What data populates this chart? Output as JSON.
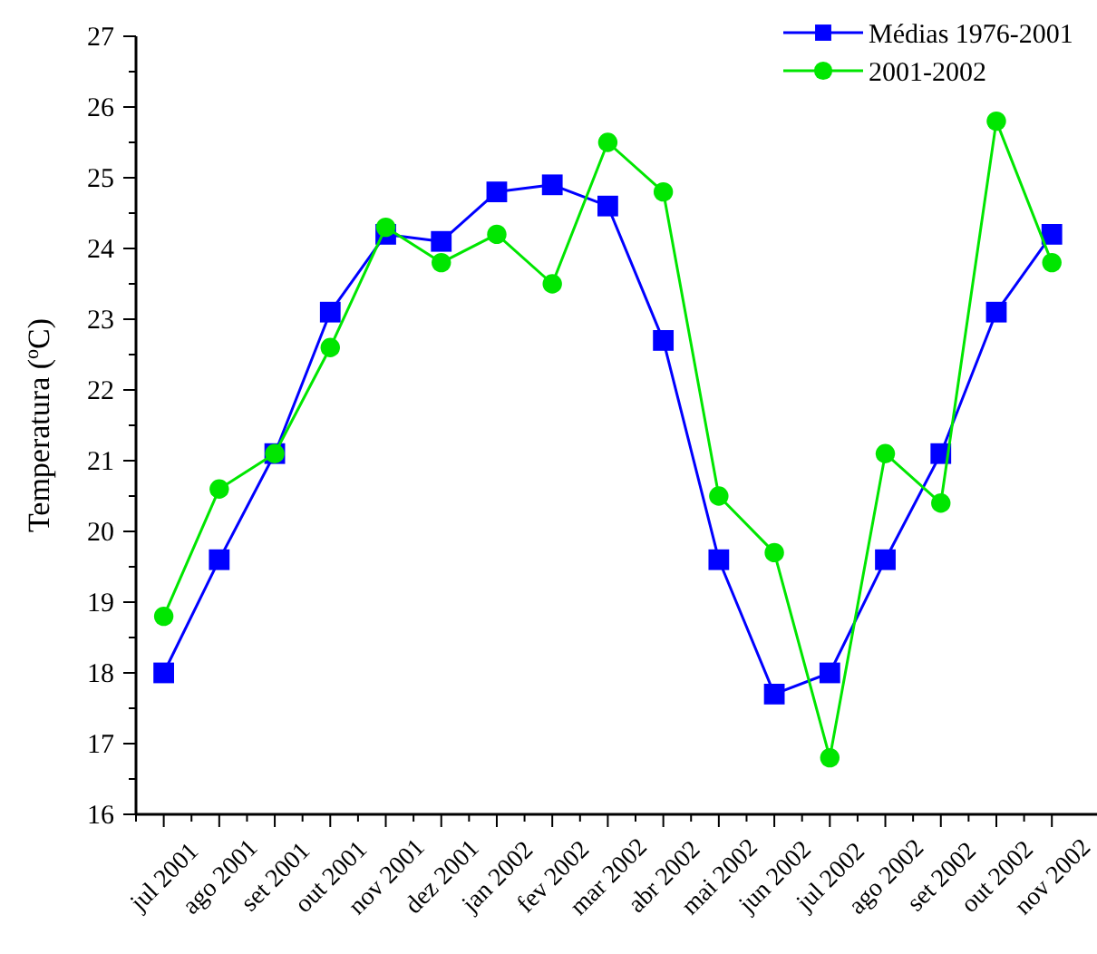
{
  "chart_data": {
    "type": "line",
    "ylabel": "Temperatura ($^{o}$C)",
    "categories": [
      "jul 2001",
      "ago 2001",
      "set 2001",
      "out 2001",
      "nov 2001",
      "dez 2001",
      "jan 2002",
      "fev 2002",
      "mar 2002",
      "abr 2002",
      "mai 2002",
      "jun 2002",
      "jul 2002",
      "ago 2002",
      "set 2002",
      "out 2002",
      "nov 2002"
    ],
    "series": [
      {
        "name": "Médias 1976-2001",
        "color": "#0000ff",
        "marker": "square",
        "values": [
          18.0,
          19.6,
          21.1,
          23.1,
          24.2,
          24.1,
          24.8,
          24.9,
          24.6,
          22.7,
          19.6,
          17.7,
          18.0,
          19.6,
          21.1,
          23.1,
          24.2
        ]
      },
      {
        "name": "2001-2002",
        "color": "#00e600",
        "marker": "circle",
        "values": [
          18.8,
          20.6,
          21.1,
          22.6,
          24.3,
          23.8,
          24.2,
          23.5,
          25.5,
          24.8,
          20.5,
          19.7,
          16.8,
          21.1,
          20.4,
          25.8,
          23.8
        ]
      }
    ],
    "ylim": [
      16,
      27
    ],
    "yticks": [
      16,
      17,
      18,
      19,
      20,
      21,
      22,
      23,
      24,
      25,
      26,
      27
    ],
    "legend": "top right",
    "grid": false
  }
}
